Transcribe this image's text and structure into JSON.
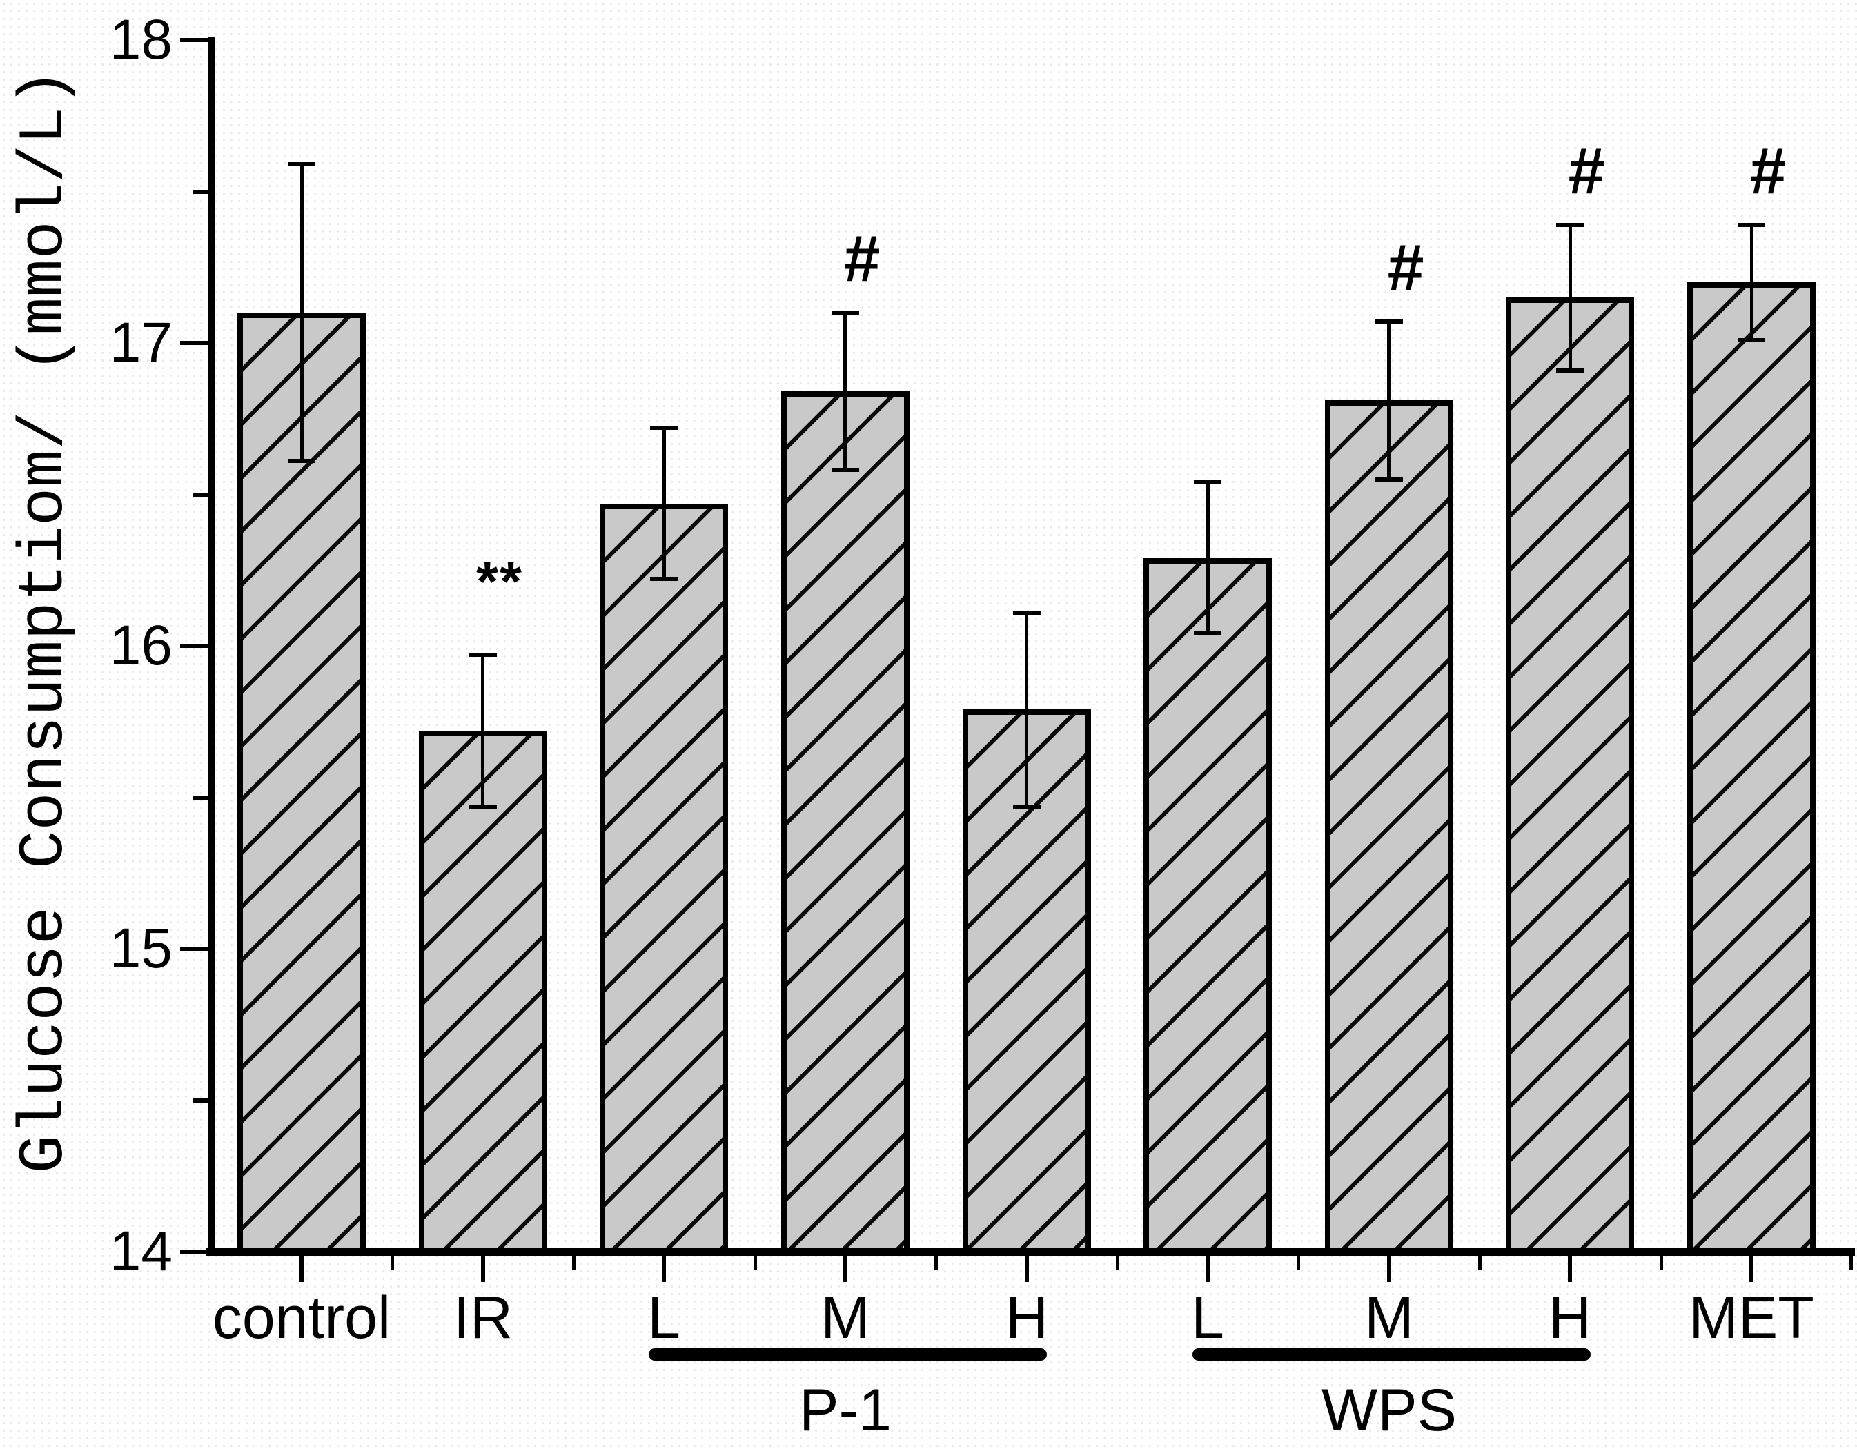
{
  "figure": {
    "background": "#ffffff",
    "dot_texture_color": "#e9ebee",
    "ink_color": "#000000"
  },
  "chart_data": {
    "type": "bar",
    "title": "",
    "xlabel": "",
    "ylabel": "Glucose Consumptiom/ (mmol/L)",
    "ylim": [
      14,
      18
    ],
    "ytick_major_step": 1,
    "ytick_minor_step": 0.5,
    "ytick_labels": [
      "14",
      "15",
      "16",
      "17",
      "18"
    ],
    "grid": false,
    "legend": null,
    "bar_fill": "#c9c9c9",
    "bar_hatch": "forward-diagonal",
    "bar_edge_color": "#000000",
    "categories": [
      "control",
      "IR",
      "L",
      "M",
      "H",
      "L",
      "M",
      "H",
      "MET"
    ],
    "values": [
      17.1,
      15.72,
      16.47,
      16.84,
      15.79,
      16.29,
      16.81,
      17.15,
      17.2
    ],
    "errors": [
      0.49,
      0.25,
      0.25,
      0.26,
      0.32,
      0.25,
      0.26,
      0.24,
      0.19
    ],
    "annotations": [
      "",
      "**",
      "",
      "#",
      "",
      "",
      "#",
      "#",
      "#"
    ],
    "groups": [
      {
        "label": "P-1",
        "from": 2,
        "to": 4
      },
      {
        "label": "WPS",
        "from": 5,
        "to": 7
      }
    ]
  }
}
